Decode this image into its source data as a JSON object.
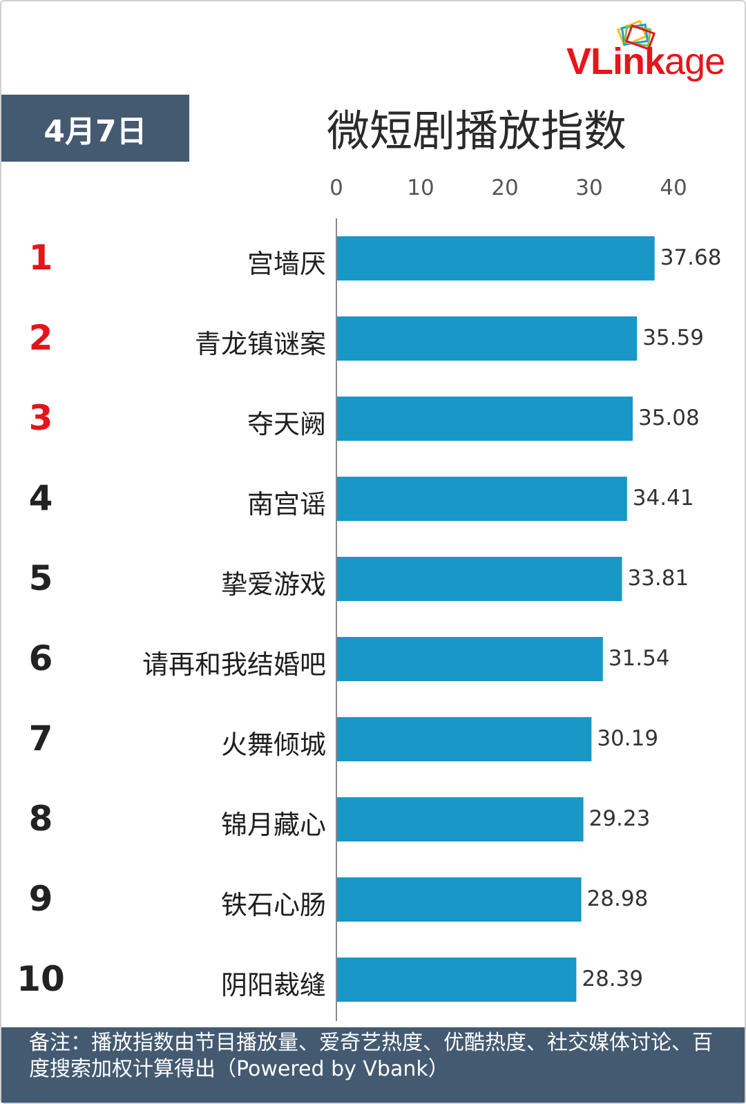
{
  "brand": {
    "name_v": "V",
    "name_link": "Link",
    "name_age": "age",
    "color": "#e8141b"
  },
  "header": {
    "date": "4月7日",
    "title": "微短剧播放指数"
  },
  "chart_data": {
    "type": "bar",
    "orientation": "horizontal",
    "title": "微短剧播放指数",
    "categories": [
      "宫墙厌",
      "青龙镇谜案",
      "夺天阙",
      "南宫谣",
      "挚爱游戏",
      "请再和我结婚吧",
      "火舞倾城",
      "锦月藏心",
      "铁石心肠",
      "阴阳裁缝"
    ],
    "ranks": [
      "1",
      "2",
      "3",
      "4",
      "5",
      "6",
      "7",
      "8",
      "9",
      "10"
    ],
    "values": [
      37.68,
      35.59,
      35.08,
      34.41,
      33.81,
      31.54,
      30.19,
      29.23,
      28.98,
      28.39
    ],
    "value_labels": [
      "37.68",
      "35.59",
      "35.08",
      "34.41",
      "33.81",
      "31.54",
      "30.19",
      "29.23",
      "28.98",
      "28.39"
    ],
    "x_ticks": [
      "0",
      "10",
      "20",
      "30",
      "40"
    ],
    "xlim": [
      0,
      40
    ],
    "xlabel": "",
    "ylabel": "",
    "grid": false,
    "bar_color": "#1997c6",
    "top_rank_color": "#e5141b"
  },
  "footer": {
    "note": "备注：播放指数由节目播放量、爱奇艺热度、优酷热度、社交媒体讨论、百度搜索加权计算得出（Powered by Vbank）"
  }
}
